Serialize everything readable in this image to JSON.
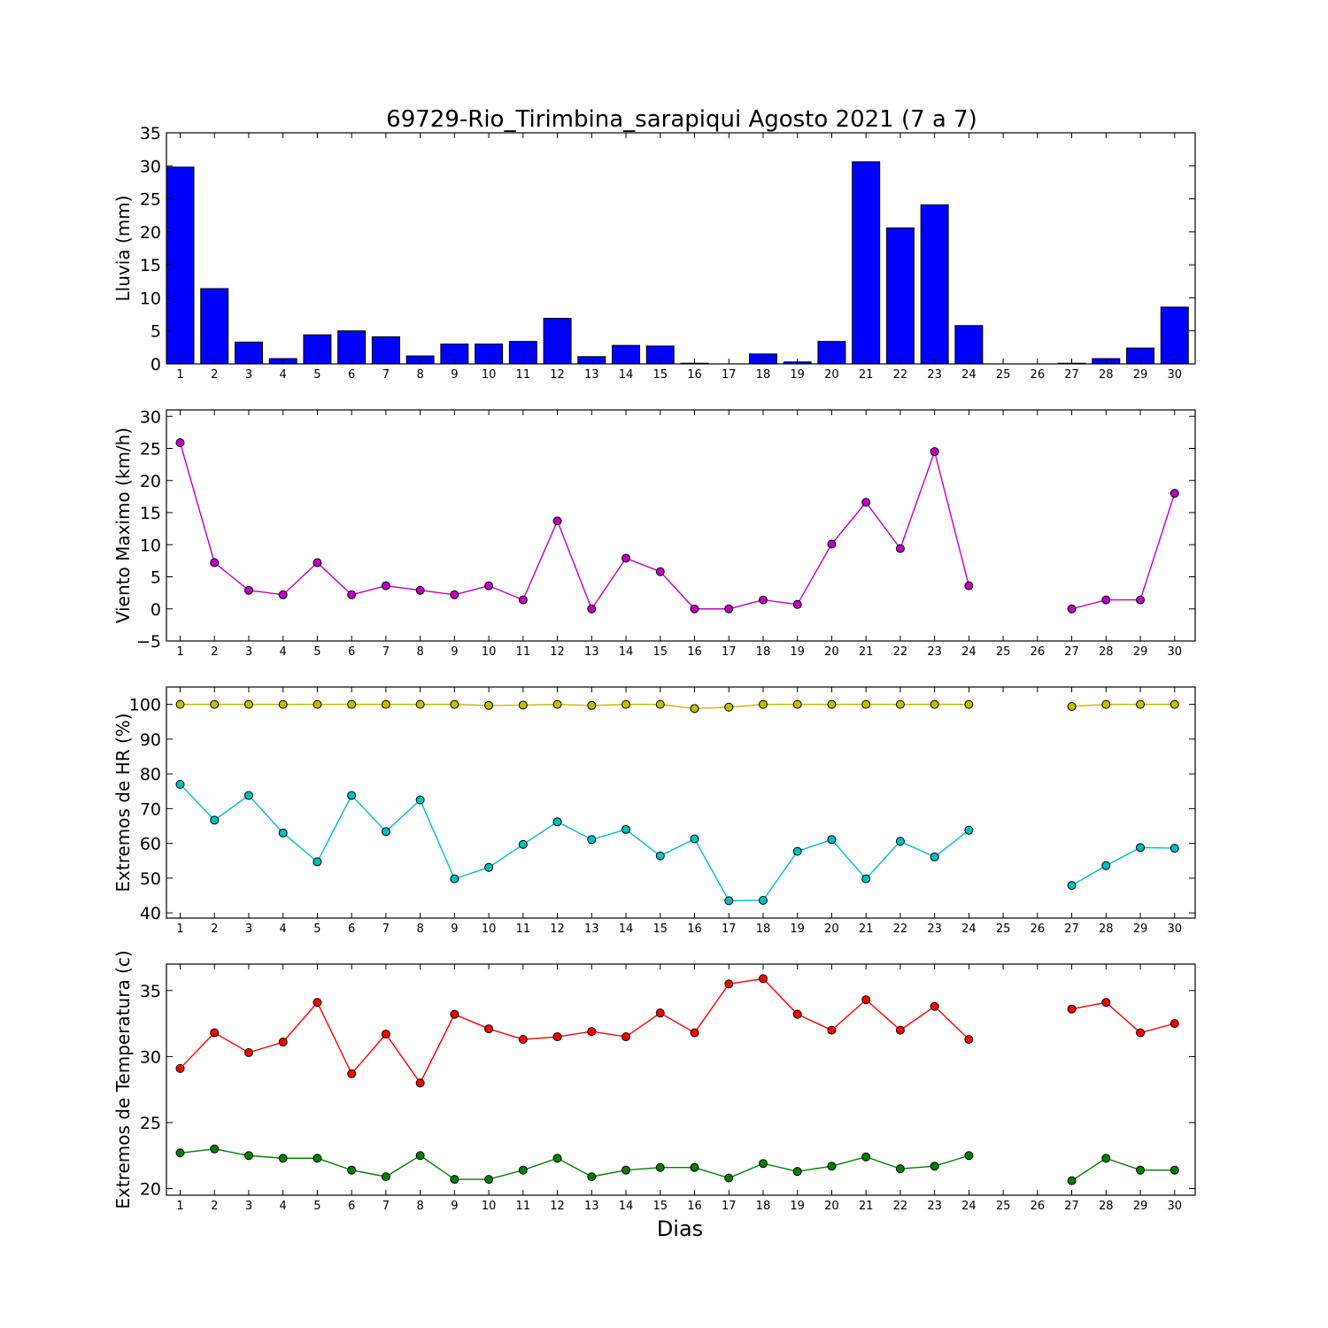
{
  "chart_data": {
    "title": "69729-Rio_Tirimbina_sarapiqui Agosto 2021  (7 a 7)",
    "xlabel": "Dias",
    "x": [
      1,
      2,
      3,
      4,
      5,
      6,
      7,
      8,
      9,
      10,
      11,
      12,
      13,
      14,
      15,
      16,
      17,
      18,
      19,
      20,
      21,
      22,
      23,
      24,
      25,
      26,
      27,
      28,
      29,
      30
    ],
    "panels": [
      {
        "type": "bar",
        "ylabel": "Lluvia (mm)",
        "ylim": [
          0,
          35
        ],
        "yticks": [
          0,
          5,
          10,
          15,
          20,
          25,
          30,
          35
        ],
        "series": [
          {
            "color": "#0000ff",
            "values": [
              29.8,
              11.4,
              3.3,
              0.8,
              4.4,
              5.0,
              4.1,
              1.2,
              3.0,
              3.0,
              3.4,
              6.9,
              1.1,
              2.8,
              2.7,
              0.1,
              0.0,
              1.5,
              0.3,
              3.4,
              30.6,
              20.6,
              24.1,
              5.8,
              0.0,
              0.0,
              0.1,
              0.8,
              2.4,
              8.6
            ]
          }
        ]
      },
      {
        "type": "line",
        "ylabel": "Viento Maximo (km/h)",
        "ylim": [
          -5,
          31
        ],
        "yticks": [
          -5,
          0,
          5,
          10,
          15,
          20,
          25,
          30
        ],
        "series": [
          {
            "color": "#bf00bf",
            "values": [
              25.9,
              7.2,
              2.9,
              2.2,
              7.2,
              2.2,
              3.6,
              2.9,
              2.2,
              3.6,
              1.4,
              13.7,
              0.0,
              7.9,
              5.8,
              0.0,
              0.0,
              1.4,
              0.7,
              10.1,
              16.6,
              9.4,
              24.5,
              3.6,
              null,
              null,
              0.0,
              1.4,
              1.4,
              18.0
            ]
          }
        ]
      },
      {
        "type": "line",
        "ylabel": "Extremos de HR (%)",
        "ylim": [
          38.5,
          105
        ],
        "yticks": [
          40,
          50,
          60,
          70,
          80,
          90,
          100
        ],
        "series": [
          {
            "color": "#bfbf00",
            "values": [
              100,
              100,
              100,
              100,
              100,
              100,
              100,
              100,
              100,
              99.7,
              99.8,
              100,
              99.7,
              100,
              100,
              98.8,
              99.2,
              100,
              100,
              100,
              100,
              100,
              100,
              100,
              null,
              null,
              99.4,
              100,
              100,
              100
            ]
          },
          {
            "color": "#00bfbf",
            "values": [
              77.0,
              66.7,
              73.8,
              63.0,
              54.7,
              73.8,
              63.4,
              72.5,
              49.8,
              53.1,
              59.7,
              66.2,
              61.1,
              64.0,
              56.4,
              61.3,
              43.5,
              43.6,
              57.7,
              61.1,
              49.8,
              60.6,
              56.1,
              63.8,
              null,
              null,
              47.9,
              53.6,
              58.8,
              58.6
            ]
          }
        ]
      },
      {
        "type": "line",
        "ylabel": "Extremos de Temperatura (c)",
        "ylim": [
          19.5,
          37
        ],
        "yticks": [
          20,
          25,
          30,
          35
        ],
        "series": [
          {
            "color": "#ff0000",
            "values": [
              29.1,
              31.8,
              30.3,
              31.1,
              34.1,
              28.7,
              31.7,
              28.0,
              33.2,
              32.1,
              31.3,
              31.5,
              31.9,
              31.5,
              33.3,
              31.8,
              35.5,
              35.9,
              33.2,
              32.0,
              34.3,
              32.0,
              33.8,
              31.3,
              null,
              null,
              33.6,
              34.1,
              31.8,
              32.5
            ]
          },
          {
            "color": "#007f00",
            "values": [
              22.7,
              23.0,
              22.5,
              22.3,
              22.3,
              21.4,
              20.9,
              22.5,
              20.7,
              20.7,
              21.4,
              22.3,
              20.9,
              21.4,
              21.6,
              21.6,
              20.8,
              21.9,
              21.3,
              21.7,
              22.4,
              21.5,
              21.7,
              22.5,
              null,
              null,
              20.6,
              22.3,
              21.4,
              21.4
            ]
          }
        ]
      }
    ]
  }
}
